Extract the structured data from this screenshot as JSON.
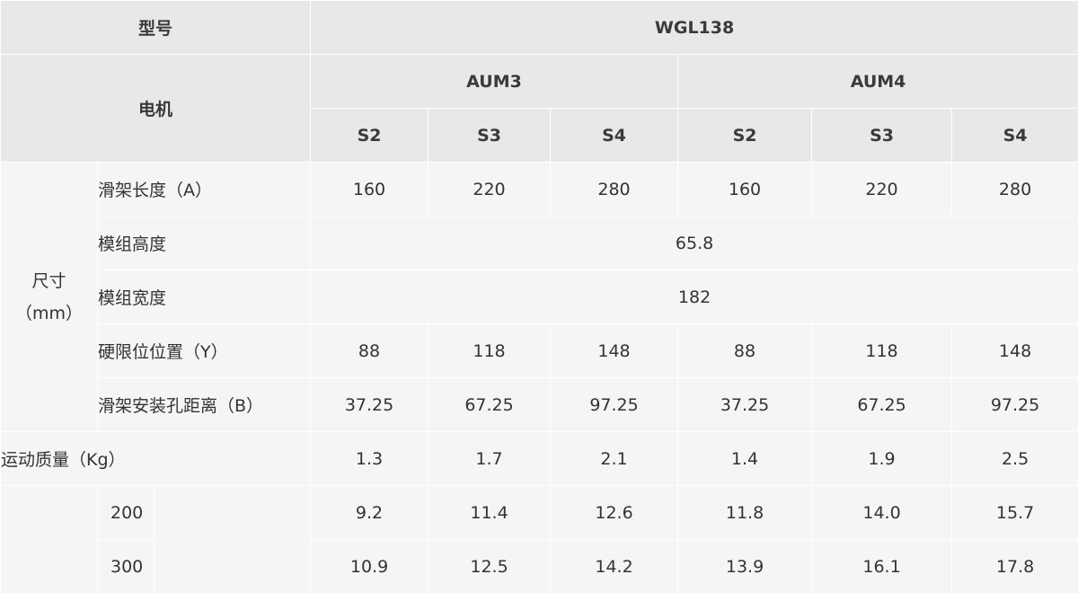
{
  "header": {
    "model_label": "型号",
    "model_value": "WGL138",
    "motor_label": "电机",
    "motors": [
      "AUM3",
      "AUM4"
    ],
    "sizes": [
      "S2",
      "S3",
      "S4",
      "S2",
      "S3",
      "S4"
    ]
  },
  "dimension_group": {
    "label_line1": "尺寸",
    "label_line2": "（mm）",
    "rows": [
      {
        "label": "滑架长度（A）",
        "values": [
          "160",
          "220",
          "280",
          "160",
          "220",
          "280"
        ]
      },
      {
        "label": "模组高度",
        "merged_value": "65.8"
      },
      {
        "label": "模组宽度",
        "merged_value": "182"
      },
      {
        "label": "硬限位位置（Y）",
        "values": [
          "88",
          "118",
          "148",
          "88",
          "118",
          "148"
        ]
      },
      {
        "label": "滑架安装孔距离（B）",
        "values": [
          "37.25",
          "67.25",
          "97.25",
          "37.25",
          "67.25",
          "97.25"
        ]
      }
    ]
  },
  "moving_mass": {
    "label": "运动质量（Kg）",
    "values": [
      "1.3",
      "1.7",
      "2.1",
      "1.4",
      "1.9",
      "2.5"
    ]
  },
  "stroke_rows": [
    {
      "label": "200",
      "values": [
        "9.2",
        "11.4",
        "12.6",
        "11.8",
        "14.0",
        "15.7"
      ]
    },
    {
      "label": "300",
      "values": [
        "10.9",
        "12.5",
        "14.2",
        "13.9",
        "16.1",
        "17.8"
      ]
    }
  ]
}
